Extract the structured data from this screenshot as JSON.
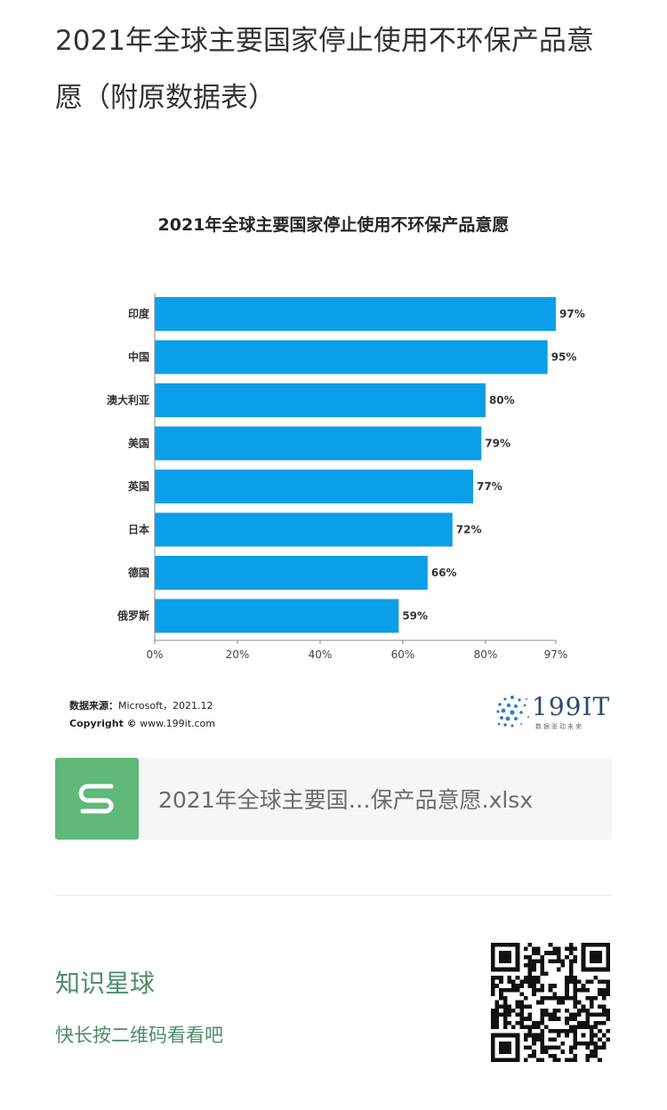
{
  "article": {
    "title": "2021年全球主要国家停止使用不环保产品意愿（附原数据表）"
  },
  "chart_data": {
    "type": "bar",
    "orientation": "horizontal",
    "title": "2021年全球主要国家停止使用不环保产品意愿",
    "categories": [
      "印度",
      "中国",
      "澳大利亚",
      "美国",
      "英国",
      "日本",
      "德国",
      "俄罗斯"
    ],
    "values": [
      97,
      95,
      80,
      79,
      77,
      72,
      66,
      59
    ],
    "value_labels": [
      "97%",
      "95%",
      "80%",
      "79%",
      "77%",
      "72%",
      "66%",
      "59%"
    ],
    "xticks": [
      0,
      20,
      40,
      60,
      80,
      97
    ],
    "xtick_labels": [
      "0%",
      "20%",
      "40%",
      "60%",
      "80%",
      "97%"
    ],
    "xlim": [
      0,
      97
    ],
    "bar_color": "#0a9fe8",
    "grid": false,
    "legend": false
  },
  "source": {
    "label": "数据来源：",
    "value": "Microsoft，2021.12",
    "copyright_label": "Copyright ©",
    "copyright_value": "www.199it.com"
  },
  "brand": {
    "name": "199IT",
    "slogan": "数据驱动未来",
    "color": "#2a4a77"
  },
  "file": {
    "name": "2021年全球主要国…保产品意愿.xlsx",
    "icon": "spreadsheet-s-icon",
    "icon_color": "#5fb878"
  },
  "promo": {
    "title": "知识星球",
    "subtitle": "快长按二维码看看吧",
    "color": "#4d8c68",
    "qr_icon": "qr-code-icon"
  }
}
